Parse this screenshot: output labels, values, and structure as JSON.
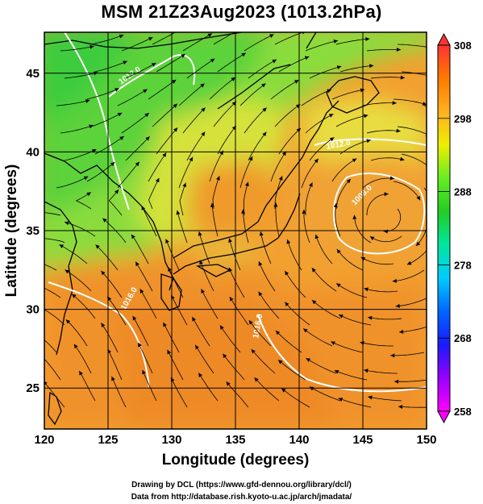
{
  "title": "MSM 21Z23Aug2023 (1013.2hPa)",
  "axes": {
    "xlabel": "Longitude (degrees)",
    "ylabel": "Latitude  (degrees)",
    "xticks": [
      "120",
      "125",
      "130",
      "135",
      "140",
      "145",
      "150"
    ],
    "yticks": [
      "25",
      "30",
      "35",
      "40",
      "45"
    ],
    "xlim": [
      120,
      150
    ],
    "ylim": [
      22.4,
      47.6
    ]
  },
  "colorbar": {
    "ticks": [
      "308",
      "298",
      "288",
      "278",
      "268",
      "258"
    ],
    "range": [
      258,
      308
    ],
    "stops": [
      "#ff00ff",
      "#9900ff",
      "#1a1aff",
      "#0066ff",
      "#00ccff",
      "#00e6a0",
      "#22cc22",
      "#66ee22",
      "#eeee00",
      "#ffb020",
      "#ff7a00",
      "#ff3333"
    ]
  },
  "contour_labels": [
    "1012.0",
    "1016.0",
    "1016.0",
    "1012.0",
    "1008.0"
  ],
  "credits": {
    "line1": "Drawing by DCL (https://www.gfd-dennou.org/library/dcl/)",
    "line2": "Data from http://database.rish.kyoto-u.ac.jp/arch/jmadata/"
  }
}
